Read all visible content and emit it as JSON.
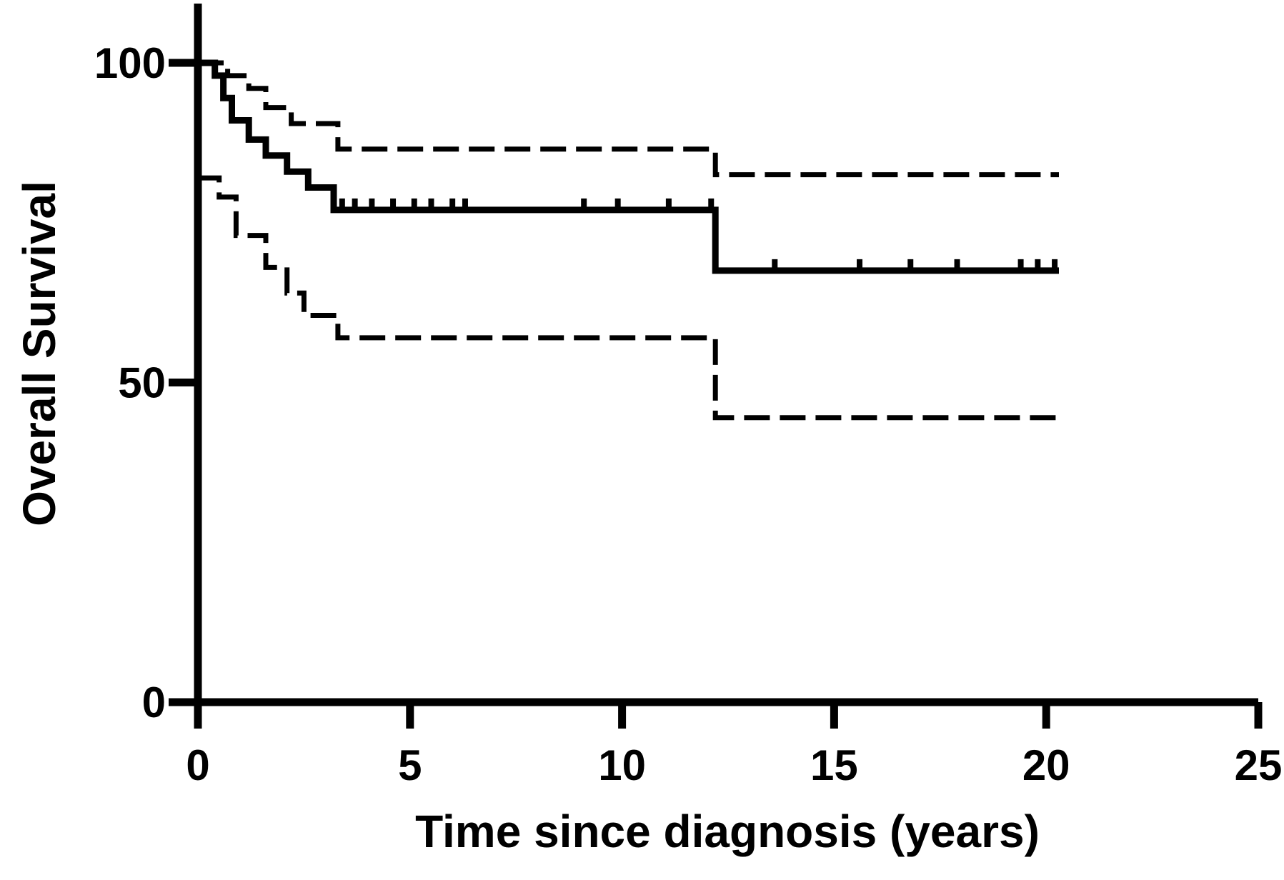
{
  "chart_data": {
    "type": "line",
    "title": "",
    "xlabel": "Time since diagnosis (years)",
    "ylabel": "Overall Survival",
    "xlim": [
      0,
      25
    ],
    "ylim": [
      0,
      100
    ],
    "xticks": [
      "0",
      "5",
      "10",
      "15",
      "20",
      "25"
    ],
    "yticks": [
      "0",
      "50",
      "100"
    ],
    "grid": false,
    "legend": "none",
    "colors": {
      "line": "#000000",
      "background": "#ffffff"
    },
    "series": [
      {
        "style": "solid",
        "role": "survival estimate",
        "points": [
          [
            0,
            100
          ],
          [
            0.4,
            100
          ],
          [
            0.4,
            98
          ],
          [
            0.6,
            98
          ],
          [
            0.6,
            94.5
          ],
          [
            0.8,
            94.5
          ],
          [
            0.8,
            91
          ],
          [
            1.2,
            91
          ],
          [
            1.2,
            88
          ],
          [
            1.6,
            88
          ],
          [
            1.6,
            85.5
          ],
          [
            2.1,
            85.5
          ],
          [
            2.1,
            83
          ],
          [
            2.6,
            83
          ],
          [
            2.6,
            80.5
          ],
          [
            3.2,
            80.5
          ],
          [
            3.2,
            77
          ],
          [
            12.2,
            77
          ],
          [
            12.2,
            67.5
          ],
          [
            20.3,
            67.5
          ]
        ],
        "censor_x": [
          3.4,
          3.7,
          4.1,
          4.6,
          5.1,
          5.5,
          6.0,
          6.3,
          9.1,
          9.9,
          11.1,
          12.1,
          13.6,
          15.6,
          16.8,
          17.9,
          19.4,
          19.8,
          20.2
        ]
      },
      {
        "style": "dashed",
        "role": "upper confidence bound",
        "points": [
          [
            0,
            100
          ],
          [
            0.7,
            100
          ],
          [
            0.7,
            98
          ],
          [
            1.2,
            98
          ],
          [
            1.2,
            96
          ],
          [
            1.6,
            96
          ],
          [
            1.6,
            93
          ],
          [
            2.2,
            93
          ],
          [
            2.2,
            90.5
          ],
          [
            3.3,
            90.5
          ],
          [
            3.3,
            86.5
          ],
          [
            12.2,
            86.5
          ],
          [
            12.2,
            82.5
          ],
          [
            20.3,
            82.5
          ]
        ]
      },
      {
        "style": "dashed",
        "role": "lower confidence bound",
        "points": [
          [
            0,
            82
          ],
          [
            0.5,
            82
          ],
          [
            0.5,
            79
          ],
          [
            0.9,
            79
          ],
          [
            0.9,
            73
          ],
          [
            1.6,
            73
          ],
          [
            1.6,
            68
          ],
          [
            2.1,
            68
          ],
          [
            2.1,
            64
          ],
          [
            2.5,
            64
          ],
          [
            2.5,
            60.5
          ],
          [
            3.3,
            60.5
          ],
          [
            3.3,
            57
          ],
          [
            12.2,
            57
          ],
          [
            12.2,
            44.5
          ],
          [
            20.3,
            44.5
          ]
        ]
      }
    ]
  }
}
